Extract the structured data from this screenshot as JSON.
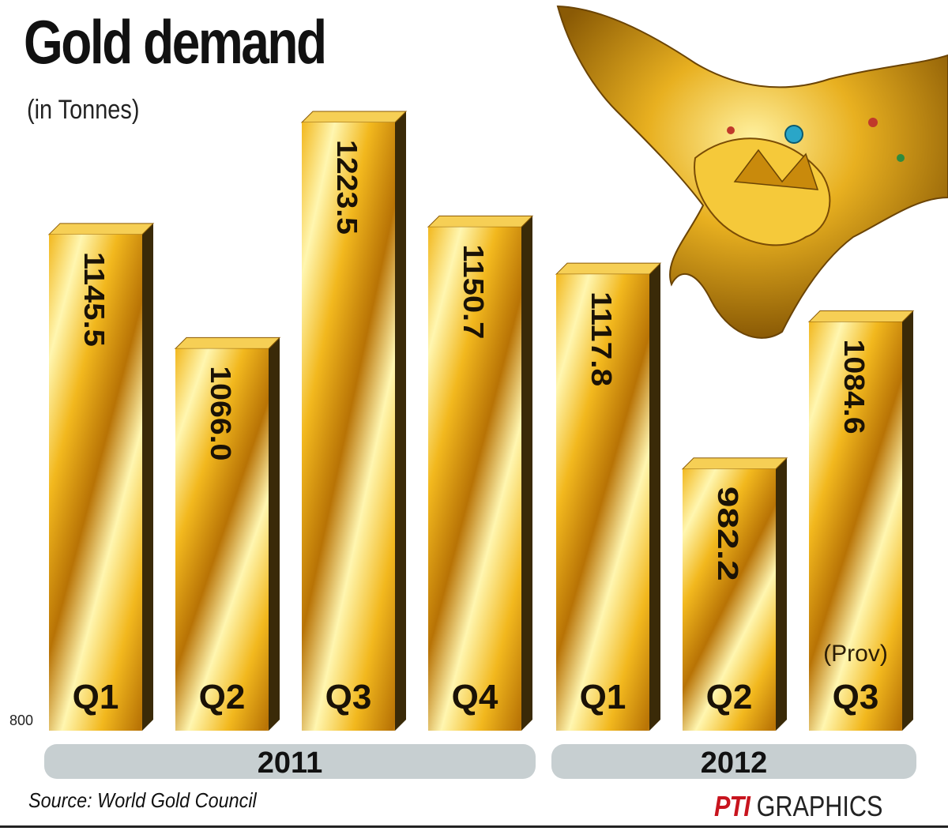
{
  "header": {
    "title": "Gold demand",
    "subtitle": "(in Tonnes)"
  },
  "footer": {
    "source": "Source: World Gold Council",
    "credit_brand": "PTI",
    "credit_text": "GRAPHICS"
  },
  "chart_data": {
    "type": "bar",
    "title": "Gold demand",
    "subtitle": "(in Tonnes)",
    "ylim": [
      800,
      1250
    ],
    "y_baseline_label": "800",
    "categories": [
      "Q1",
      "Q2",
      "Q3",
      "Q4",
      "Q1",
      "Q2",
      "Q3"
    ],
    "values": [
      1145.5,
      1066.0,
      1223.5,
      1150.7,
      1117.8,
      982.2,
      1084.6
    ],
    "value_labels": [
      "1145.5",
      "1066.0",
      "1223.5",
      "1150.7",
      "1117.8",
      "982.2",
      "1084.6"
    ],
    "annotations": [
      "",
      "",
      "",
      "",
      "",
      "",
      "(Prov)"
    ],
    "groups": [
      {
        "label": "2011",
        "categories": [
          "Q1",
          "Q2",
          "Q3",
          "Q4"
        ]
      },
      {
        "label": "2012",
        "categories": [
          "Q1",
          "Q2",
          "Q3"
        ]
      }
    ],
    "colors": {
      "bar_light": "#fff6b0",
      "bar_mid": "#f2b81e",
      "bar_dark": "#b87305",
      "side": "#3a2a08",
      "top": "#f6cf55",
      "group_bar": "#c7cfd1"
    }
  }
}
